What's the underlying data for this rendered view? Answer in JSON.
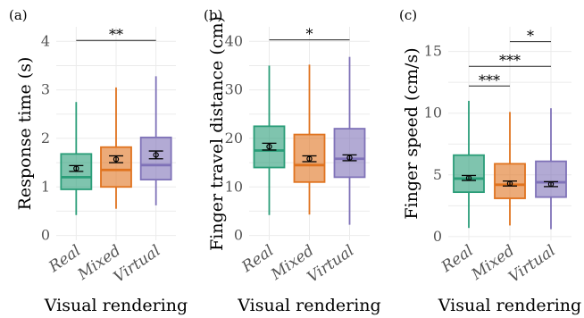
{
  "colors": {
    "Real": "#2a9d78",
    "Mixed": "#e0731f",
    "Virtual": "#7f72b8"
  },
  "chart_data": [
    {
      "type": "boxplot",
      "panel_label": "(a)",
      "ylabel": "Response time (s)",
      "xlabel": "Visual rendering",
      "categories": [
        "Real",
        "Mixed",
        "Virtual"
      ],
      "ylim": [
        -0.1,
        4.3
      ],
      "yticks": [
        0,
        1,
        2,
        3,
        4
      ],
      "ytick_labels": [
        "0",
        "1",
        "2",
        "3",
        "4"
      ],
      "boxes": [
        {
          "q1": 0.95,
          "median": 1.2,
          "q3": 1.68,
          "whisker_low": 0.42,
          "whisker_high": 2.75,
          "mean": 1.38,
          "ci_low": 1.32,
          "ci_high": 1.44
        },
        {
          "q1": 1.0,
          "median": 1.35,
          "q3": 1.82,
          "whisker_low": 0.55,
          "whisker_high": 3.05,
          "mean": 1.57,
          "ci_low": 1.5,
          "ci_high": 1.64
        },
        {
          "q1": 1.15,
          "median": 1.45,
          "q3": 2.02,
          "whisker_low": 0.62,
          "whisker_high": 3.28,
          "mean": 1.66,
          "ci_low": 1.58,
          "ci_high": 1.74
        }
      ],
      "significance": [
        {
          "from": 0,
          "to": 2,
          "y": 4.02,
          "label": "**"
        }
      ]
    },
    {
      "type": "boxplot",
      "panel_label": "(b)",
      "ylabel": "Finger travel distance (cm)",
      "xlabel": "Visual rendering",
      "categories": [
        "Real",
        "Mixed",
        "Virtual"
      ],
      "ylim": [
        -1,
        43
      ],
      "yticks": [
        0,
        10,
        20,
        30,
        40
      ],
      "ytick_labels": [
        "0",
        "10",
        "20",
        "30",
        "40"
      ],
      "boxes": [
        {
          "q1": 14,
          "median": 17.5,
          "q3": 22.5,
          "whisker_low": 4.2,
          "whisker_high": 35,
          "mean": 18.3,
          "ci_low": 17.6,
          "ci_high": 19.0
        },
        {
          "q1": 11,
          "median": 14.5,
          "q3": 20.8,
          "whisker_low": 4.3,
          "whisker_high": 35.2,
          "mean": 15.8,
          "ci_low": 15.2,
          "ci_high": 16.4
        },
        {
          "q1": 12,
          "median": 15.8,
          "q3": 22,
          "whisker_low": 2.2,
          "whisker_high": 36.8,
          "mean": 16.0,
          "ci_low": 15.4,
          "ci_high": 16.6
        }
      ],
      "significance": [
        {
          "from": 0,
          "to": 2,
          "y": 40.3,
          "label": "*"
        }
      ]
    },
    {
      "type": "boxplot",
      "panel_label": "(c)",
      "ylabel": "Finger speed (cm/s)",
      "xlabel": "Visual rendering",
      "categories": [
        "Real",
        "Mixed",
        "Virtual"
      ],
      "ylim": [
        -0.3,
        17
      ],
      "yticks": [
        0,
        5,
        10,
        15
      ],
      "ytick_labels": [
        "0",
        "5",
        "10",
        "15"
      ],
      "boxes": [
        {
          "q1": 3.6,
          "median": 4.7,
          "q3": 6.6,
          "whisker_low": 0.7,
          "whisker_high": 11,
          "mean": 4.75,
          "ci_low": 4.55,
          "ci_high": 4.95
        },
        {
          "q1": 3.1,
          "median": 4.2,
          "q3": 5.9,
          "whisker_low": 0.9,
          "whisker_high": 10.1,
          "mean": 4.3,
          "ci_low": 4.1,
          "ci_high": 4.5
        },
        {
          "q1": 3.2,
          "median": 4.4,
          "q3": 6.1,
          "whisker_low": 0.6,
          "whisker_high": 10.4,
          "mean": 4.25,
          "ci_low": 4.05,
          "ci_high": 4.45
        }
      ],
      "significance": [
        {
          "from": 0,
          "to": 1,
          "y": 12.2,
          "label": "***"
        },
        {
          "from": 0,
          "to": 2,
          "y": 13.8,
          "label": "***"
        },
        {
          "from": 1,
          "to": 2,
          "y": 15.8,
          "label": "*"
        }
      ]
    }
  ]
}
